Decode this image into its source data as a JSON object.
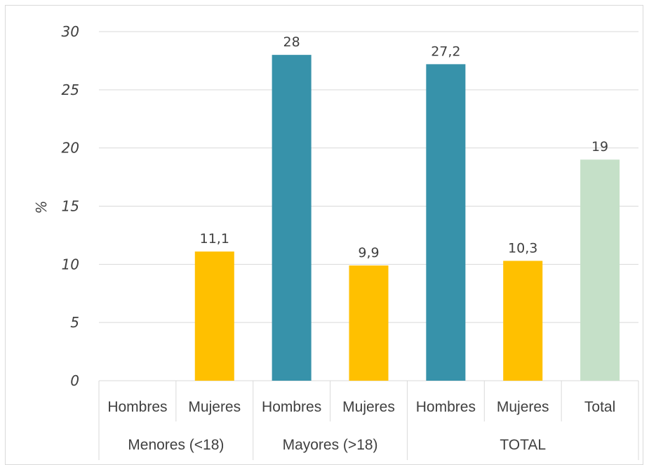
{
  "chart_data": {
    "type": "bar",
    "ylabel": "%",
    "ylim": [
      0,
      30
    ],
    "yticks": [
      "0",
      "5",
      "10",
      "15",
      "20",
      "25",
      "30"
    ],
    "grid": true,
    "legend": "none",
    "groups": [
      {
        "label": "Menores (<18)",
        "bars": [
          {
            "category": "Hombres",
            "value": null,
            "label": ""
          },
          {
            "category": "Mujeres",
            "value": 11.1,
            "label": "11,1"
          }
        ]
      },
      {
        "label": "Mayores  (>18)",
        "bars": [
          {
            "category": "Hombres",
            "value": 28,
            "label": "28"
          },
          {
            "category": "Mujeres",
            "value": 9.9,
            "label": "9,9"
          }
        ]
      },
      {
        "label": "TOTAL",
        "bars": [
          {
            "category": "Hombres",
            "value": 27.2,
            "label": "27,2"
          },
          {
            "category": "Mujeres",
            "value": 10.3,
            "label": "10,3"
          },
          {
            "category": "Total",
            "value": 19,
            "label": "19"
          }
        ]
      }
    ],
    "colors": {
      "Hombres": "#3792aa",
      "Mujeres": "#ffc000",
      "Total": "#c5e0c8",
      "grid": "#d9d9d9",
      "text": "#404040"
    }
  }
}
